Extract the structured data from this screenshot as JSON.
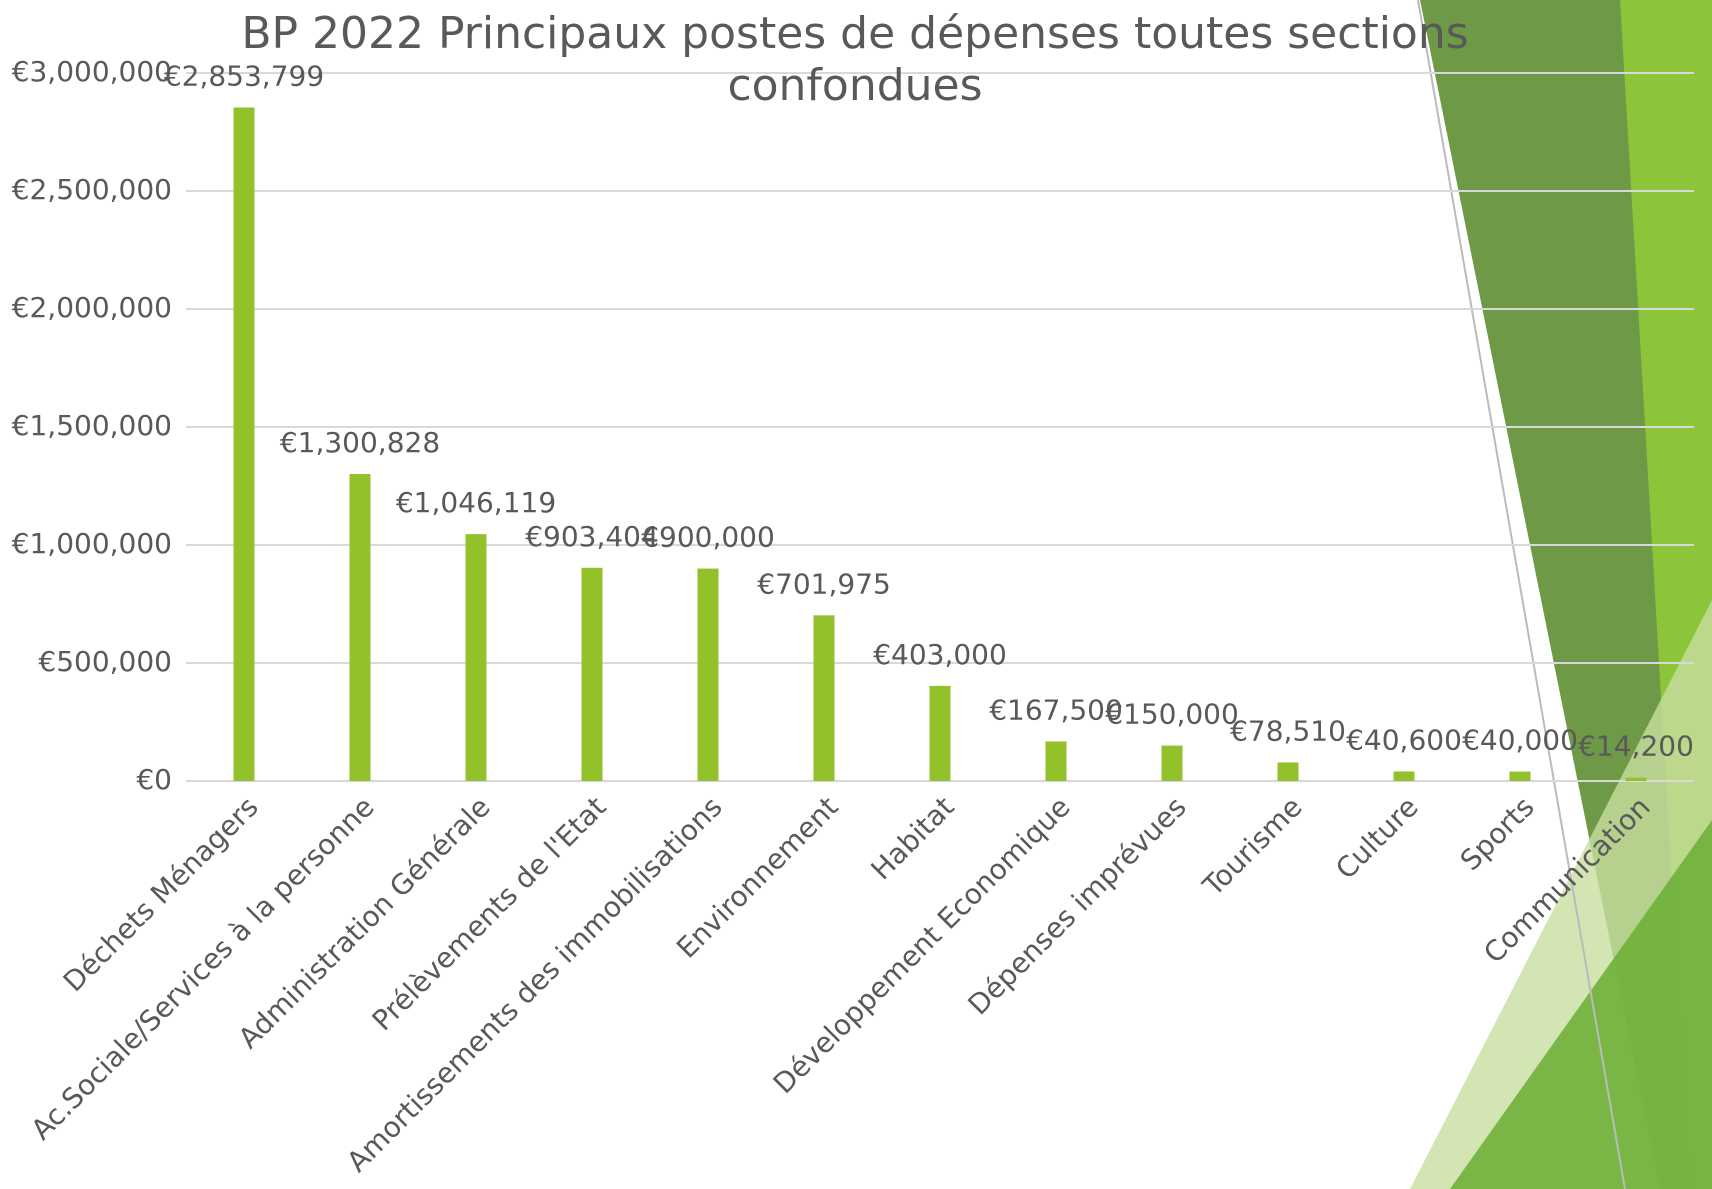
{
  "chart_data": {
    "type": "bar",
    "title": "BP 2022 Principaux postes de dépenses toutes sections confondues",
    "categories": [
      "Déchets Ménagers",
      "Ac.Sociale/Services à la personne",
      "Administration Générale",
      "Prélèvements de l'Etat",
      "Amortissements des immobilisations",
      "Environnement",
      "Habitat",
      "Développement Economique",
      "Dépenses imprévues",
      "Tourisme",
      "Culture",
      "Sports",
      "Communication"
    ],
    "values": [
      2853799,
      1300828,
      1046119,
      903404,
      900000,
      701975,
      403000,
      167500,
      150000,
      78510,
      40600,
      40000,
      14200
    ],
    "value_labels": [
      "€2,853,799",
      "€1,300,828",
      "€1,046,119",
      "€903,404",
      "€900,000",
      "€701,975",
      "€403,000",
      "€167,500",
      "€150,000",
      "€78,510",
      "€40,600",
      "€40,000",
      "€14,200"
    ],
    "color": "#92c12b",
    "ylim": [
      0,
      3000000
    ],
    "yticks": [
      {
        "value": 0,
        "label": "€0"
      },
      {
        "value": 500000,
        "label": "€500,000"
      },
      {
        "value": 1000000,
        "label": "€1,000,000"
      },
      {
        "value": 1500000,
        "label": "€1,500,000"
      },
      {
        "value": 2000000,
        "label": "€2,000,000"
      },
      {
        "value": 2500000,
        "label": "€2,500,000"
      },
      {
        "value": 3000000,
        "label": "€3,000,000"
      }
    ],
    "grid": true
  }
}
